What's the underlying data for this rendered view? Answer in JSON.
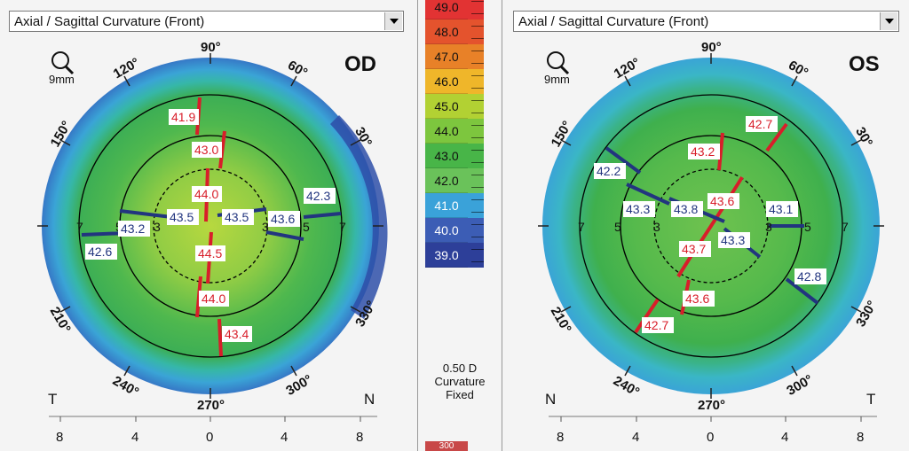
{
  "od": {
    "dropdown": "Axial / Sagittal Curvature (Front)",
    "eye": "OD",
    "zoom_label": "9mm",
    "degrees": {
      "d90": "90°",
      "d120": "120°",
      "d60": "60°",
      "d150": "150°",
      "d30": "30°",
      "d210": "210°",
      "d330": "330°",
      "d240": "240°",
      "d300": "300°",
      "d270": "270°"
    },
    "side_left": "T",
    "side_right": "N",
    "axis_ticks": [
      "8",
      "4",
      "0",
      "4",
      "8"
    ],
    "ring_labels": [
      "7",
      "5",
      "3",
      "3",
      "5",
      "7"
    ],
    "red_values": [
      "41.9",
      "43.0",
      "44.0",
      "44.5",
      "44.0",
      "43.4"
    ],
    "blue_values": [
      "42.3",
      "43.6",
      "43.5",
      "43.5",
      "43.2",
      "42.6"
    ]
  },
  "os": {
    "dropdown": "Axial / Sagittal Curvature (Front)",
    "eye": "OS",
    "zoom_label": "9mm",
    "degrees": {
      "d90": "90°",
      "d120": "120°",
      "d60": "60°",
      "d150": "150°",
      "d30": "30°",
      "d210": "210°",
      "d330": "330°",
      "d240": "240°",
      "d300": "300°",
      "d270": "270°"
    },
    "side_left": "N",
    "side_right": "T",
    "axis_ticks": [
      "8",
      "4",
      "0",
      "4",
      "8"
    ],
    "ring_labels": [
      "7",
      "5",
      "3",
      "3",
      "5",
      "7"
    ],
    "red_values": [
      "42.7",
      "43.2",
      "43.6",
      "43.7",
      "43.6",
      "42.7"
    ],
    "blue_values": [
      "42.2",
      "43.3",
      "43.8",
      "43.3",
      "43.1",
      "42.8"
    ]
  },
  "scale": {
    "values": [
      "49.0",
      "48.0",
      "47.0",
      "46.0",
      "45.0",
      "44.0",
      "43.0",
      "42.0",
      "41.0",
      "40.0",
      "39.0"
    ],
    "colors": [
      "#e23333",
      "#e4532d",
      "#e88128",
      "#efb62a",
      "#b2d133",
      "#7dc63e",
      "#48b548",
      "#6ac25a",
      "#3aa2d9",
      "#3c5db5",
      "#2d3f99"
    ],
    "step": "0.50 D",
    "type": "Curvature",
    "mode": "Fixed",
    "bottom_value": "300"
  }
}
